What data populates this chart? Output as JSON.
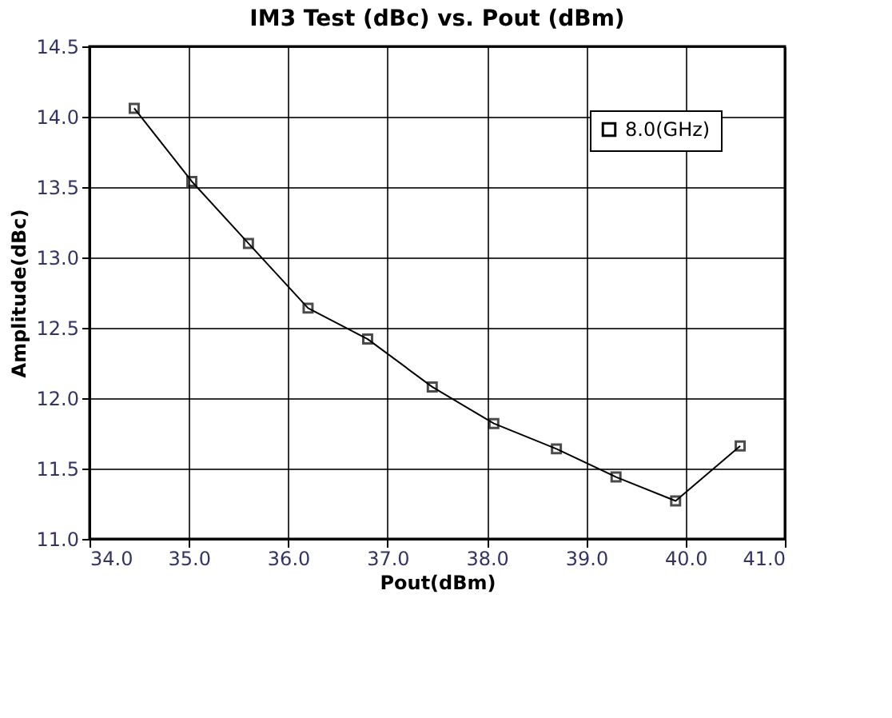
{
  "chart_data": {
    "type": "line",
    "title": "IM3 Test (dBc) vs. Pout (dBm)",
    "xlabel": "Pout(dBm)",
    "ylabel": "Amplitude(dBc)",
    "x": [
      34.45,
      35.03,
      35.6,
      36.2,
      36.8,
      37.45,
      38.07,
      38.7,
      39.3,
      39.9,
      40.55
    ],
    "series": [
      {
        "name": "8.0(GHz)",
        "color": "#000000",
        "values": [
          14.06,
          13.54,
          13.1,
          12.64,
          12.42,
          12.08,
          11.82,
          11.64,
          11.44,
          11.27,
          11.66
        ]
      }
    ],
    "xlim": [
      34.0,
      41.0
    ],
    "ylim": [
      11.0,
      14.5
    ],
    "xticks": [
      {
        "value": 34,
        "label": "34.0"
      },
      {
        "value": 35,
        "label": "35.0"
      },
      {
        "value": 36,
        "label": "36.0"
      },
      {
        "value": 37,
        "label": "37.0"
      },
      {
        "value": 38,
        "label": "38.0"
      },
      {
        "value": 39,
        "label": "39.0"
      },
      {
        "value": 40,
        "label": "40.0"
      },
      {
        "value": 41,
        "label": "41.0"
      }
    ],
    "yticks": [
      {
        "value": 11,
        "label": "11.0"
      },
      11.5,
      {
        "value": 12,
        "label": "12.0"
      },
      12.5,
      {
        "value": 13,
        "label": "13.0"
      },
      13.5,
      {
        "value": 14,
        "label": "14.0"
      },
      14.5
    ],
    "grid": true,
    "legend": "top right",
    "marker": "square",
    "line_style": "solid"
  }
}
